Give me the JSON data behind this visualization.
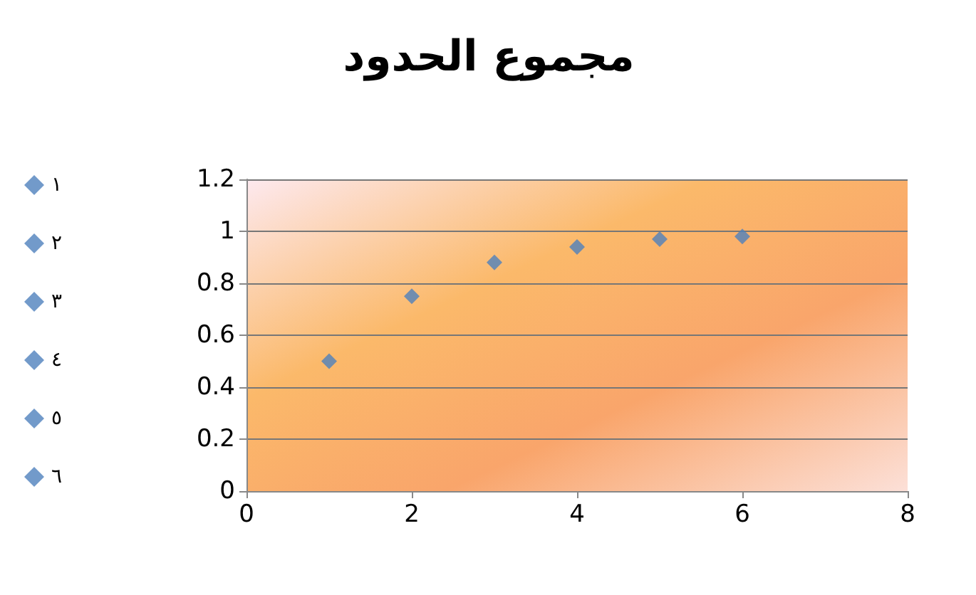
{
  "chart_data": {
    "type": "scatter",
    "title": "مجموع الحدود",
    "series": [
      {
        "name": "١",
        "color": "#4f81bd",
        "x": [
          1
        ],
        "values": [
          0.5
        ]
      },
      {
        "name": "٢",
        "color": "#4f81bd",
        "x": [
          2
        ],
        "values": [
          0.75
        ]
      },
      {
        "name": "٣",
        "color": "#4f81bd",
        "x": [
          3
        ],
        "values": [
          0.88
        ]
      },
      {
        "name": "٤",
        "color": "#4f81bd",
        "x": [
          4
        ],
        "values": [
          0.94
        ]
      },
      {
        "name": "٥",
        "color": "#4f81bd",
        "x": [
          5
        ],
        "values": [
          0.97
        ]
      },
      {
        "name": "٦",
        "color": "#4f81bd",
        "x": [
          6
        ],
        "values": [
          0.98
        ]
      }
    ],
    "xlim": [
      0,
      8
    ],
    "xticks": [
      0,
      2,
      4,
      6,
      8
    ],
    "ylim": [
      0,
      1.2
    ],
    "yticks": [
      0,
      0.2,
      0.4,
      0.6,
      0.8,
      1,
      1.2
    ],
    "grid": "y",
    "legend": "left",
    "marker": "diamond"
  }
}
